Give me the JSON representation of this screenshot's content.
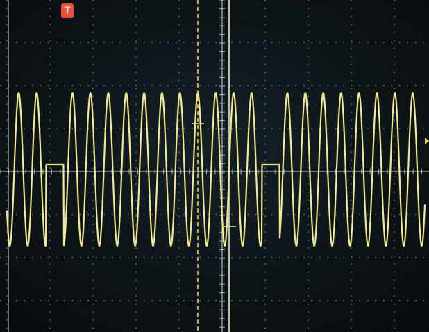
{
  "trigger_marker": "T"
}
